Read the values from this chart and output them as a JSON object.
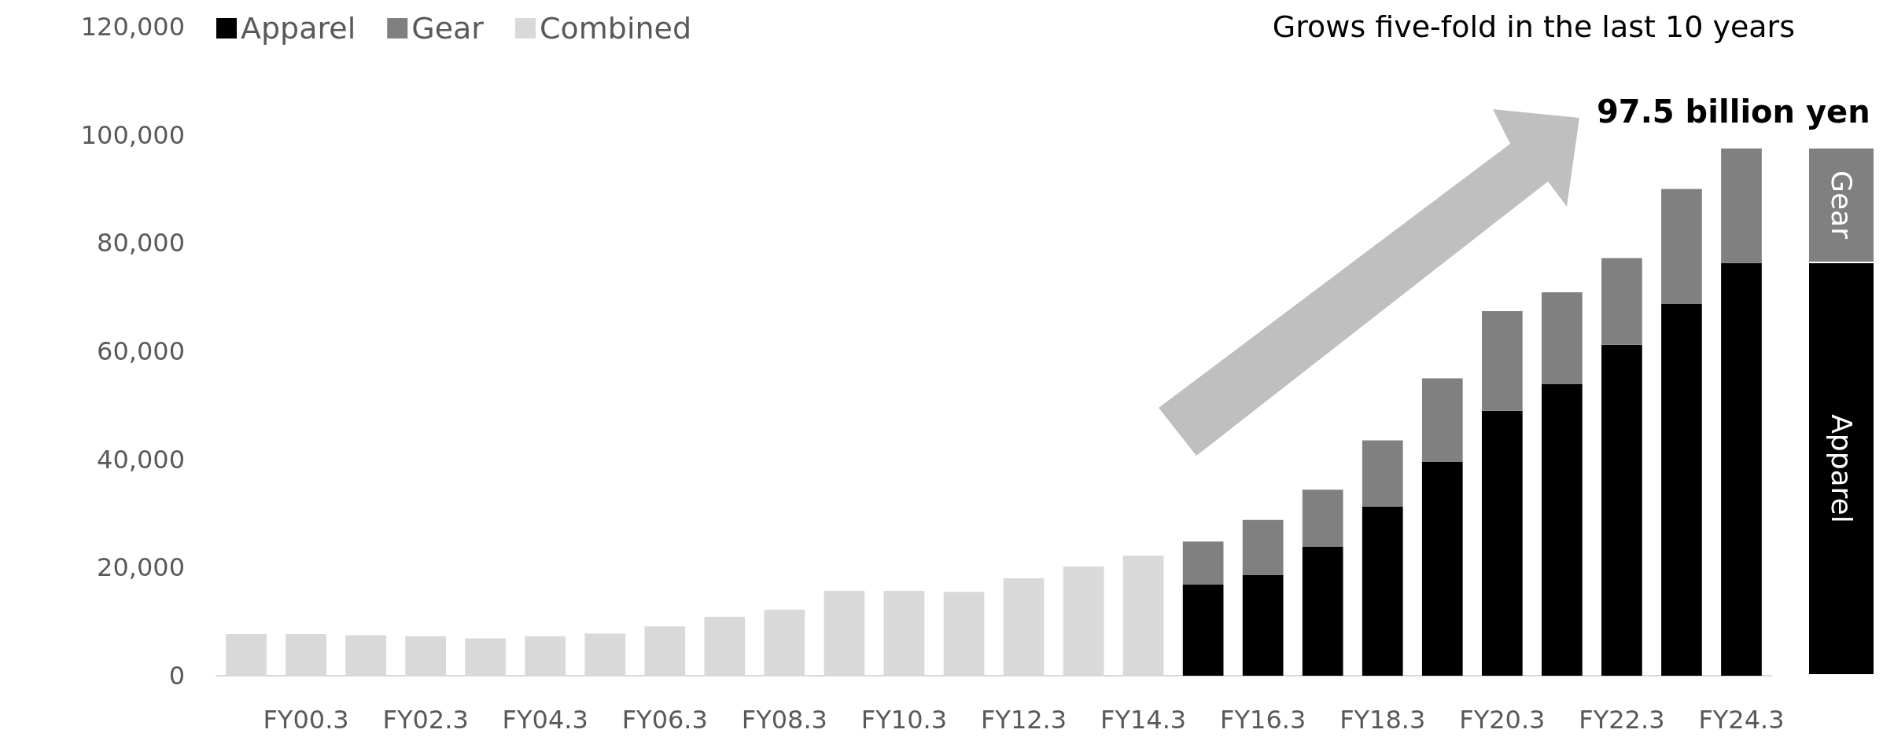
{
  "chart_data": {
    "type": "bar",
    "stacked": true,
    "categories": [
      null,
      "FY00.3",
      null,
      "FY02.3",
      null,
      "FY04.3",
      null,
      "FY06.3",
      null,
      "FY08.3",
      null,
      "FY10.3",
      null,
      "FY12.3",
      null,
      "FY14.3",
      null,
      "FY16.3",
      null,
      "FY18.3",
      null,
      "FY20.3",
      null,
      "FY22.3",
      null,
      "FY24.3"
    ],
    "series": [
      {
        "name": "Apparel",
        "color": "#000000",
        "values": [
          null,
          null,
          null,
          null,
          null,
          null,
          null,
          null,
          null,
          null,
          null,
          null,
          null,
          null,
          null,
          null,
          16900,
          18600,
          23900,
          31300,
          39500,
          49000,
          53900,
          61200,
          68700,
          76300
        ]
      },
      {
        "name": "Gear",
        "color": "#808080",
        "values": [
          null,
          null,
          null,
          null,
          null,
          null,
          null,
          null,
          null,
          null,
          null,
          null,
          null,
          null,
          null,
          null,
          7900,
          10200,
          10500,
          12200,
          15500,
          18400,
          17000,
          16000,
          21300,
          21200
        ]
      },
      {
        "name": "Combined",
        "color": "#d9d9d9",
        "values": [
          7700,
          7700,
          7500,
          7300,
          6900,
          7300,
          7800,
          9100,
          10900,
          12200,
          15700,
          15700,
          15500,
          18000,
          20200,
          22200,
          null,
          null,
          null,
          null,
          null,
          null,
          null,
          null,
          null,
          null
        ]
      }
    ],
    "ylim": [
      0,
      120000
    ],
    "yticks": [
      0,
      {
        "value": 20000,
        "label": "20,000"
      },
      {
        "value": 40000,
        "label": "40,000"
      },
      {
        "value": 60000,
        "label": "60,000"
      },
      {
        "value": 80000,
        "label": "80,000"
      },
      {
        "value": 100000,
        "label": "100,000"
      },
      {
        "value": 120000,
        "label": "120,000"
      }
    ],
    "grid": false,
    "legend": "top left",
    "annotations": [
      "Grows five-fold in the last 10 years",
      {
        "text": "97.5 billion yen",
        "x": "FY24.3",
        "y": 97500
      }
    ]
  }
}
